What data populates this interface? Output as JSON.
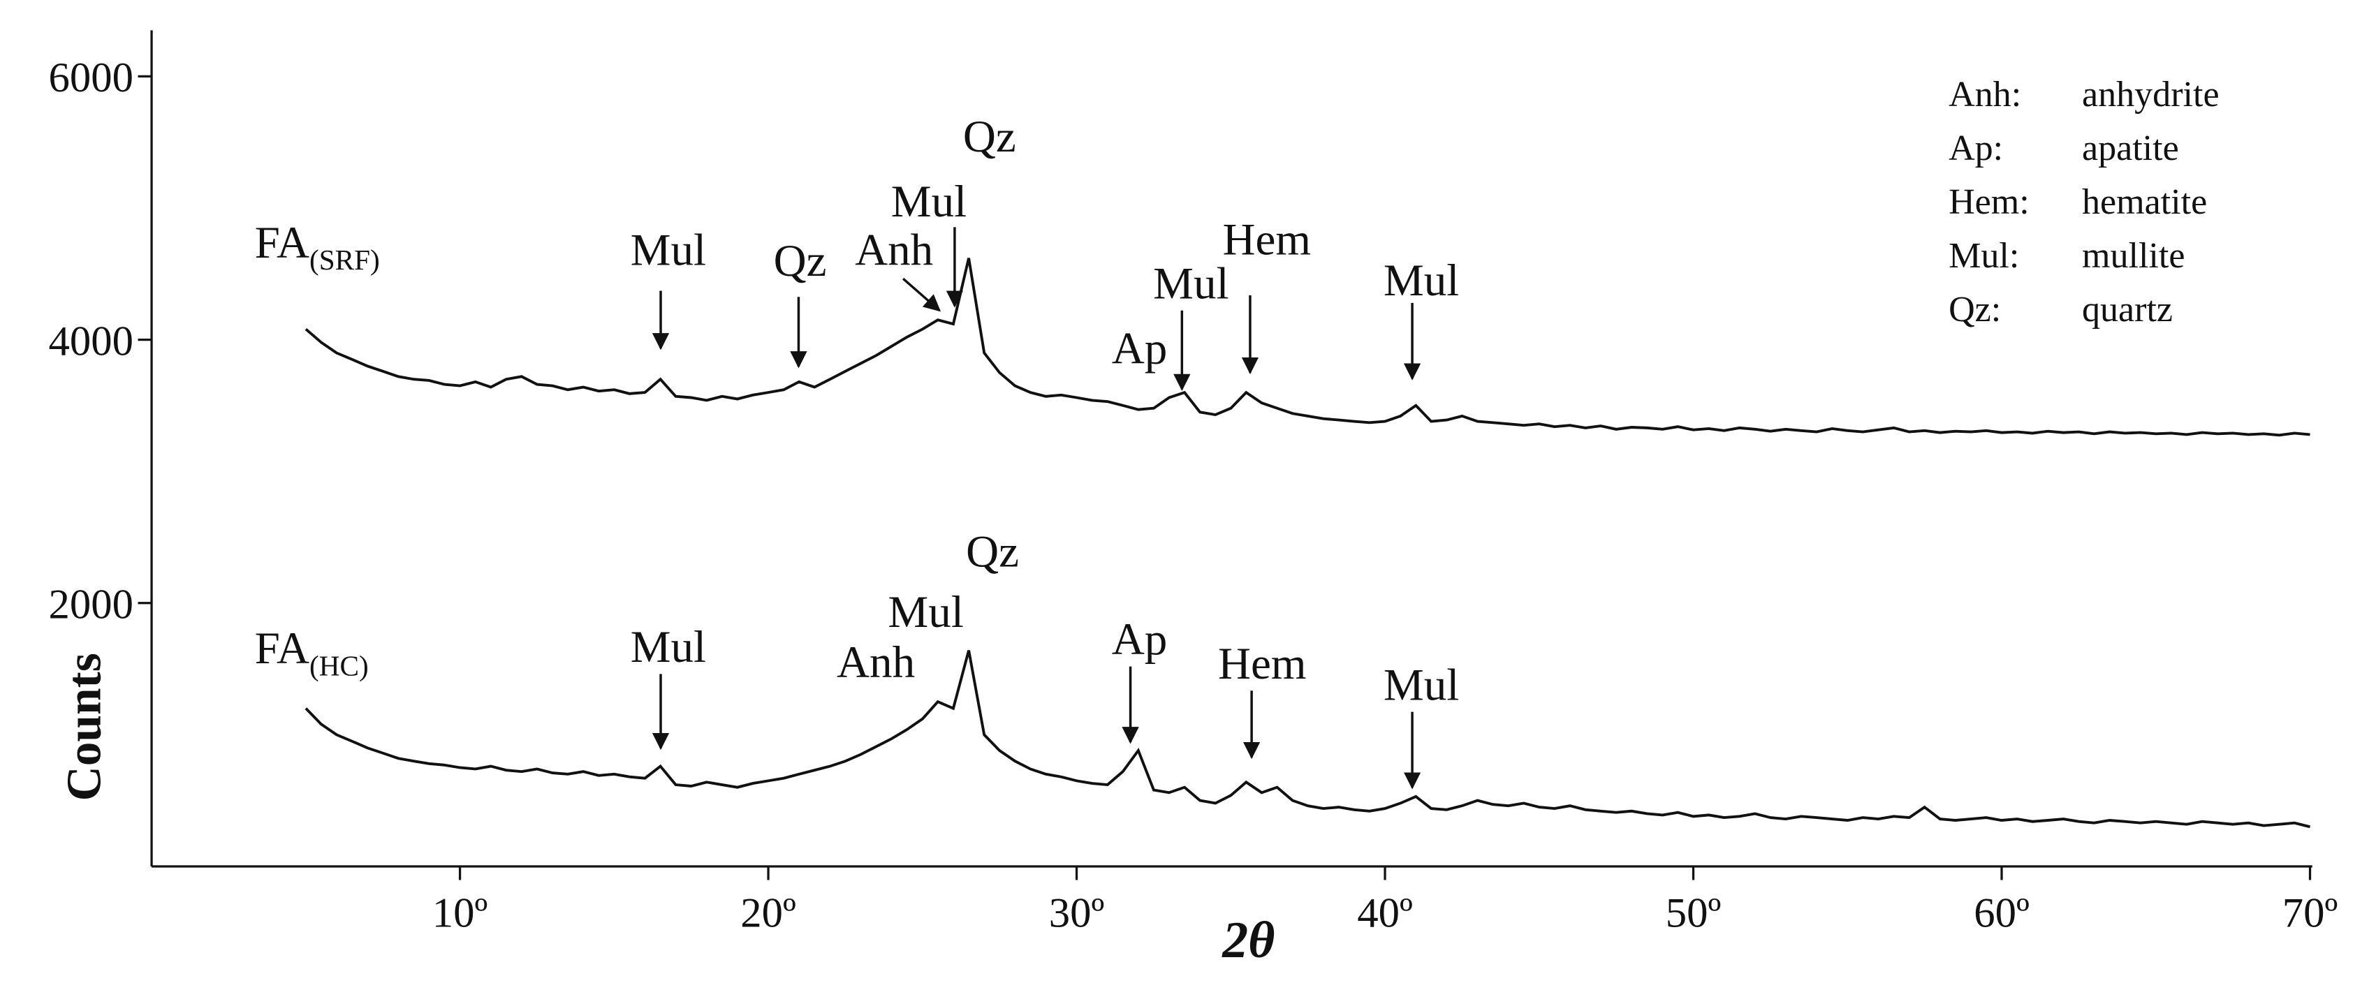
{
  "chart_data": {
    "type": "line",
    "xlabel": "2θ",
    "ylabel": "Counts",
    "xlim": [
      0,
      70
    ],
    "ylim": [
      0,
      6350
    ],
    "xticks": [
      {
        "value": 10,
        "label": "10º"
      },
      {
        "value": 20,
        "label": "20º"
      },
      {
        "value": 30,
        "label": "30º"
      },
      {
        "value": 40,
        "label": "40º"
      },
      {
        "value": 50,
        "label": "50º"
      },
      {
        "value": 60,
        "label": "60º"
      },
      {
        "value": 70,
        "label": "70º"
      }
    ],
    "yticks": [
      2000,
      4000,
      6000
    ],
    "x": [
      5,
      5.5,
      6,
      6.5,
      7,
      7.5,
      8,
      8.5,
      9,
      9.5,
      10,
      10.5,
      11,
      11.5,
      12,
      12.5,
      13,
      13.5,
      14,
      14.5,
      15,
      15.5,
      16,
      16.5,
      17,
      17.5,
      18,
      18.5,
      19,
      19.5,
      20,
      20.5,
      21,
      21.5,
      22,
      22.5,
      23,
      23.5,
      24,
      24.5,
      25,
      25.5,
      26,
      26.5,
      27,
      27.5,
      28,
      28.5,
      29,
      29.5,
      30,
      30.5,
      31,
      31.5,
      32,
      32.5,
      33,
      33.5,
      34,
      34.5,
      35,
      35.5,
      36,
      36.5,
      37,
      37.5,
      38,
      38.5,
      39,
      39.5,
      40,
      40.5,
      41,
      41.5,
      42,
      42.5,
      43,
      43.5,
      44,
      44.5,
      45,
      45.5,
      46,
      46.5,
      47,
      47.5,
      48,
      48.5,
      49,
      49.5,
      50,
      50.5,
      51,
      51.5,
      52,
      52.5,
      53,
      53.5,
      54,
      54.5,
      55,
      55.5,
      56,
      56.5,
      57,
      57.5,
      58,
      58.5,
      59,
      59.5,
      60,
      60.5,
      61,
      61.5,
      62,
      62.5,
      63,
      63.5,
      64,
      64.5,
      65,
      65.5,
      66,
      66.5,
      67,
      67.5,
      68,
      68.5,
      69,
      69.5,
      70
    ],
    "series": [
      {
        "name": "FA",
        "name_subscript": "(SRF)",
        "color": "#111111",
        "values": [
          4080,
          3980,
          3900,
          3850,
          3800,
          3760,
          3720,
          3700,
          3690,
          3660,
          3650,
          3680,
          3640,
          3700,
          3720,
          3660,
          3650,
          3620,
          3640,
          3610,
          3620,
          3590,
          3600,
          3700,
          3570,
          3560,
          3540,
          3570,
          3550,
          3580,
          3600,
          3620,
          3680,
          3640,
          3700,
          3760,
          3820,
          3880,
          3950,
          4020,
          4080,
          4150,
          4120,
          4620,
          3900,
          3750,
          3650,
          3600,
          3570,
          3580,
          3560,
          3540,
          3530,
          3500,
          3470,
          3480,
          3560,
          3600,
          3450,
          3430,
          3480,
          3600,
          3520,
          3480,
          3440,
          3420,
          3400,
          3390,
          3380,
          3370,
          3380,
          3420,
          3500,
          3380,
          3390,
          3420,
          3380,
          3370,
          3360,
          3350,
          3360,
          3340,
          3350,
          3330,
          3345,
          3320,
          3335,
          3330,
          3320,
          3340,
          3315,
          3325,
          3310,
          3330,
          3320,
          3305,
          3320,
          3310,
          3300,
          3325,
          3310,
          3300,
          3315,
          3330,
          3300,
          3310,
          3295,
          3305,
          3300,
          3310,
          3295,
          3300,
          3290,
          3305,
          3295,
          3300,
          3285,
          3300,
          3290,
          3295,
          3285,
          3290,
          3280,
          3295,
          3285,
          3290,
          3280,
          3285,
          3275,
          3290,
          3280
        ]
      },
      {
        "name": "FA",
        "name_subscript": "(HC)",
        "color": "#111111",
        "values": [
          1200,
          1080,
          1000,
          950,
          900,
          860,
          820,
          800,
          780,
          770,
          750,
          740,
          760,
          730,
          720,
          740,
          710,
          700,
          720,
          690,
          700,
          680,
          670,
          760,
          620,
          610,
          640,
          620,
          600,
          630,
          650,
          670,
          700,
          730,
          760,
          800,
          850,
          910,
          970,
          1040,
          1120,
          1250,
          1200,
          1640,
          1000,
          880,
          800,
          740,
          700,
          680,
          650,
          630,
          620,
          720,
          880,
          580,
          560,
          600,
          500,
          480,
          540,
          640,
          560,
          600,
          500,
          460,
          440,
          450,
          430,
          420,
          440,
          480,
          530,
          440,
          430,
          460,
          500,
          470,
          460,
          480,
          450,
          440,
          460,
          430,
          420,
          410,
          420,
          400,
          390,
          410,
          380,
          390,
          370,
          380,
          400,
          370,
          360,
          380,
          370,
          360,
          350,
          370,
          360,
          380,
          370,
          450,
          360,
          350,
          360,
          370,
          350,
          360,
          340,
          350,
          360,
          340,
          330,
          350,
          340,
          330,
          340,
          330,
          320,
          340,
          330,
          320,
          330,
          310,
          320,
          330,
          300
        ]
      }
    ],
    "annotations": [
      "Mul",
      "Qz",
      "Anh",
      "Mul",
      "Qz",
      "Ap",
      "Mul",
      "Hem",
      "Mul",
      "Mul",
      "Anh",
      "Mul",
      "Qz",
      "Ap",
      "Hem",
      "Mul"
    ],
    "phase_key": [
      {
        "abbr": "Anh:",
        "name": "anhydrite"
      },
      {
        "abbr": "Ap:",
        "name": "apatite"
      },
      {
        "abbr": "Hem:",
        "name": "hematite"
      },
      {
        "abbr": "Mul:",
        "name": "mullite"
      },
      {
        "abbr": "Qz:",
        "name": "quartz"
      }
    ]
  }
}
